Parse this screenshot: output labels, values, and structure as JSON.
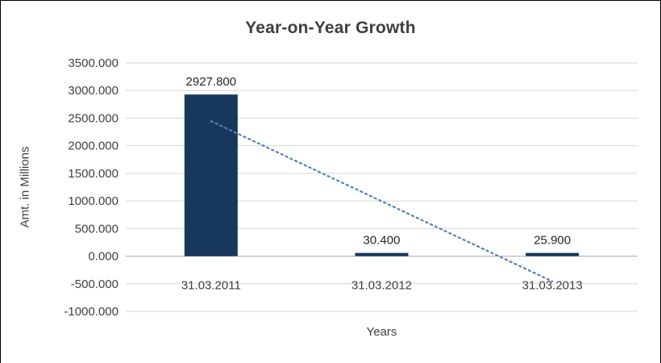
{
  "chart_data": {
    "type": "bar",
    "title": "Year-on-Year Growth",
    "xlabel": "Years",
    "ylabel": "Amt. in Millions",
    "categories": [
      "31.03.2011",
      "31.03.2012",
      "31.03.2013"
    ],
    "values": [
      2927.8,
      30.4,
      25.9
    ],
    "data_labels": [
      "2927.800",
      "30.400",
      "25.900"
    ],
    "ylim": [
      -1000,
      3500
    ],
    "ytick_step": 500,
    "ytick_labels": [
      "3500.000",
      "3000.000",
      "2500.000",
      "2000.000",
      "1500.000",
      "1000.000",
      "500.000",
      "0.000",
      "-500.000",
      "-1000.000"
    ],
    "grid": true,
    "legend": "none",
    "trendline": {
      "style": "dotted",
      "x1": 0,
      "y1": 2445.65,
      "x2": 2,
      "y2": -456.25
    },
    "colors": {
      "bar": "#17375d",
      "trendline": "#4f81bd",
      "gridline": "#d6d6d6",
      "zero_axis": "#aeaeae",
      "text": "#3f3f3f"
    }
  }
}
